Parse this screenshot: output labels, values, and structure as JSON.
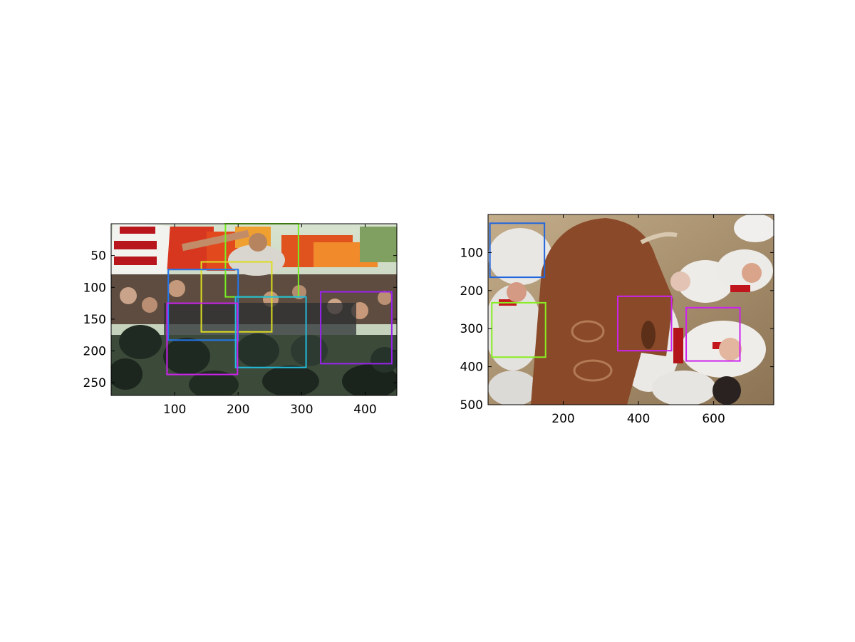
{
  "chart_data": [
    {
      "type": "image-with-boxes",
      "title": "",
      "xlabel": "",
      "ylabel": "",
      "xlim": [
        0,
        450
      ],
      "ylim": [
        0,
        270
      ],
      "y_reversed": true,
      "xticks": [
        100,
        200,
        300,
        400
      ],
      "yticks": [
        50,
        100,
        150,
        200,
        250
      ],
      "image_scene": "crowd-protest-riot-police",
      "boxes": [
        {
          "x1": 180,
          "y1": 0,
          "x2": 295,
          "y2": 115,
          "color": "#77ee22"
        },
        {
          "x1": 142,
          "y1": 60,
          "x2": 253,
          "y2": 170,
          "color": "#dddd22"
        },
        {
          "x1": 90,
          "y1": 72,
          "x2": 200,
          "y2": 183,
          "color": "#2277ee"
        },
        {
          "x1": 196,
          "y1": 115,
          "x2": 307,
          "y2": 226,
          "color": "#22bbdd"
        },
        {
          "x1": 88,
          "y1": 125,
          "x2": 199,
          "y2": 237,
          "color": "#cc22ee"
        },
        {
          "x1": 330,
          "y1": 107,
          "x2": 442,
          "y2": 220,
          "color": "#9922ee"
        }
      ]
    },
    {
      "type": "image-with-boxes",
      "title": "",
      "xlabel": "",
      "ylabel": "",
      "xlim": [
        0,
        760
      ],
      "ylim": [
        0,
        500
      ],
      "y_reversed": true,
      "xticks": [
        200,
        400,
        600
      ],
      "yticks": [
        100,
        200,
        300,
        400,
        500
      ],
      "image_scene": "bull-run-crowd",
      "boxes": [
        {
          "x1": 5,
          "y1": 23,
          "x2": 150,
          "y2": 165,
          "color": "#2266dd"
        },
        {
          "x1": 10,
          "y1": 232,
          "x2": 153,
          "y2": 375,
          "color": "#88ee22"
        },
        {
          "x1": 345,
          "y1": 215,
          "x2": 488,
          "y2": 358,
          "color": "#cc22ee"
        },
        {
          "x1": 527,
          "y1": 245,
          "x2": 670,
          "y2": 385,
          "color": "#cc22ee"
        }
      ]
    }
  ]
}
